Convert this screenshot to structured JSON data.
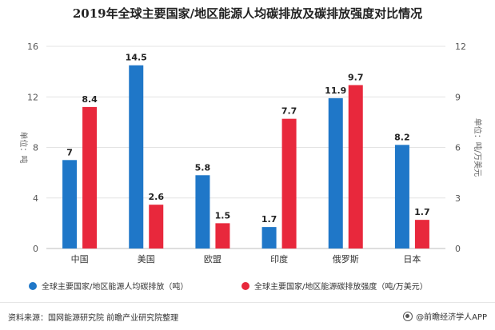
{
  "chart_data": {
    "type": "bar",
    "title": "2019年全球主要国家/地区能源人均碳排放及碳排放强度对比情况",
    "categories": [
      "中国",
      "美国",
      "欧盟",
      "印度",
      "俄罗斯",
      "日本"
    ],
    "series": [
      {
        "name": "全球主要国家/地区能源人均碳排放（吨）",
        "axis": "left",
        "color": "#1f77c8",
        "values": [
          7,
          14.5,
          5.8,
          1.7,
          11.9,
          8.2
        ]
      },
      {
        "name": "全球主要国家/地区能源碳排放强度（吨/万美元）",
        "axis": "right",
        "color": "#e8283c",
        "values": [
          8.4,
          2.6,
          1.5,
          7.7,
          9.7,
          1.7
        ]
      }
    ],
    "ylabel_left": "单位：吨",
    "ylabel_right": "单位：吨/万美元",
    "ylim_left": [
      0,
      16
    ],
    "yticks_left": [
      0,
      4,
      8,
      12,
      16
    ],
    "ylim_right": [
      0,
      12
    ],
    "yticks_right": [
      0,
      3,
      6,
      9,
      12
    ],
    "grid": true,
    "legend": "bottom"
  },
  "footer": {
    "source": "资料来源：国网能源研究院 前瞻产业研究院整理",
    "brand": "@前瞻经济学人APP"
  }
}
